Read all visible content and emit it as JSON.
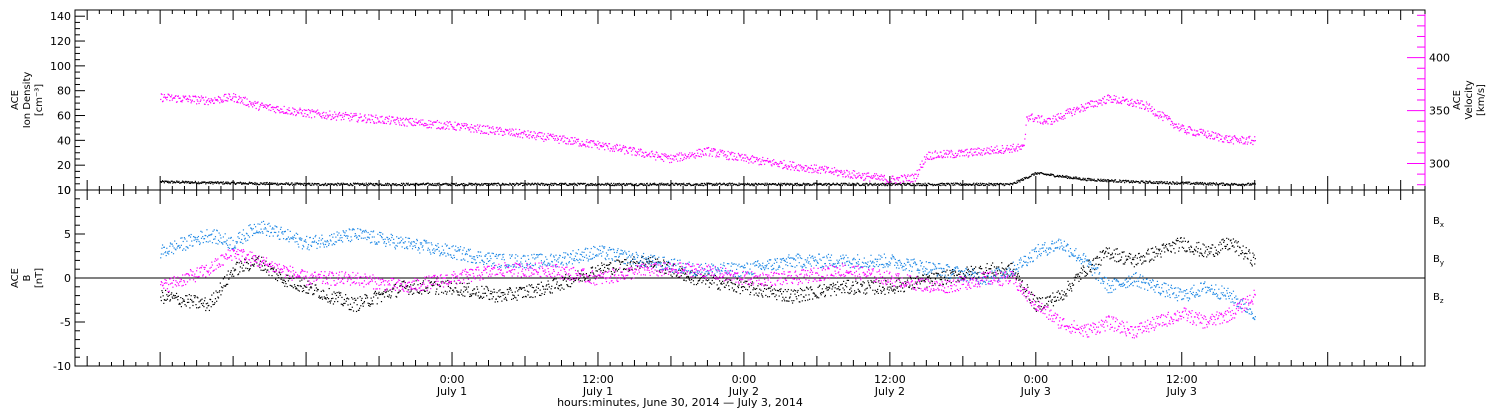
{
  "colors": {
    "black": "#000000",
    "magenta": "#ff00ff",
    "blue": "#1e88e5"
  },
  "chart_data": [
    {
      "type": "scatter",
      "panel": "top",
      "ylabel": {
        "line1": "ACE",
        "line2": "Ion Density",
        "line3": "[cm⁻³]"
      },
      "ylabel_right": {
        "line1": "ACE",
        "line2": "Velocity",
        "line3": "[km/s]"
      },
      "ylim": [
        0,
        145
      ],
      "ylim_right": [
        275,
        445
      ],
      "yticks": [
        0,
        20,
        40,
        60,
        80,
        100,
        120,
        140
      ],
      "yticks_right": [
        300,
        350,
        400
      ],
      "series": [
        {
          "color": "#000000",
          "axis": "left",
          "keypoints": [
            [
              0,
              7
            ],
            [
              6,
              6
            ],
            [
              12,
              5
            ],
            [
              18,
              5
            ],
            [
              24,
              5
            ],
            [
              36,
              5
            ],
            [
              48,
              5
            ],
            [
              60,
              5
            ],
            [
              66,
              5
            ],
            [
              70,
              5
            ],
            [
              72,
              14
            ],
            [
              76,
              9
            ],
            [
              80,
              7
            ],
            [
              84,
              6
            ],
            [
              88,
              5
            ],
            [
              90,
              5
            ]
          ]
        },
        {
          "color": "#ff00ff",
          "axis": "right",
          "keypoints": [
            [
              0,
              363
            ],
            [
              4,
              360
            ],
            [
              6,
              363
            ],
            [
              8,
              355
            ],
            [
              12,
              348
            ],
            [
              18,
              342
            ],
            [
              24,
              336
            ],
            [
              30,
              328
            ],
            [
              36,
              318
            ],
            [
              42,
              305
            ],
            [
              45,
              312
            ],
            [
              48,
              305
            ],
            [
              54,
              295
            ],
            [
              60,
              285
            ],
            [
              62,
              287
            ],
            [
              63,
              308
            ],
            [
              66,
              310
            ],
            [
              70,
              315
            ],
            [
              71,
              315
            ],
            [
              71.2,
              345
            ],
            [
              73,
              340
            ],
            [
              75,
              350
            ],
            [
              78,
              362
            ],
            [
              81,
              355
            ],
            [
              84,
              333
            ],
            [
              88,
              323
            ],
            [
              90,
              322
            ]
          ]
        }
      ]
    },
    {
      "type": "scatter",
      "panel": "bottom",
      "ylabel": {
        "line1": "ACE",
        "line2": "B",
        "line3": "[nT]"
      },
      "ylim": [
        -10,
        10
      ],
      "yticks": [
        -10,
        -5,
        0,
        5,
        10
      ],
      "series": [
        {
          "name": "Bx",
          "color": "#000000",
          "keypoints": [
            [
              0,
              -2
            ],
            [
              4,
              -3
            ],
            [
              6,
              1
            ],
            [
              8,
              2
            ],
            [
              10,
              0
            ],
            [
              12,
              -1
            ],
            [
              14,
              -2
            ],
            [
              16,
              -3
            ],
            [
              18,
              -2
            ],
            [
              20,
              -1
            ],
            [
              24,
              -1
            ],
            [
              28,
              -2
            ],
            [
              32,
              -1
            ],
            [
              36,
              1
            ],
            [
              40,
              2
            ],
            [
              44,
              0
            ],
            [
              48,
              -1
            ],
            [
              52,
              -2
            ],
            [
              56,
              -1
            ],
            [
              60,
              -1
            ],
            [
              64,
              0
            ],
            [
              68,
              1
            ],
            [
              70,
              1
            ],
            [
              72,
              -3
            ],
            [
              74,
              -2
            ],
            [
              76,
              1
            ],
            [
              78,
              3
            ],
            [
              80,
              2
            ],
            [
              84,
              4
            ],
            [
              86,
              3
            ],
            [
              88,
              4
            ],
            [
              90,
              2
            ]
          ]
        },
        {
          "name": "By",
          "color": "#1e88e5",
          "keypoints": [
            [
              0,
              3
            ],
            [
              4,
              5
            ],
            [
              6,
              4
            ],
            [
              8,
              6
            ],
            [
              10,
              5
            ],
            [
              12,
              4
            ],
            [
              16,
              5
            ],
            [
              20,
              4
            ],
            [
              24,
              3
            ],
            [
              28,
              2
            ],
            [
              32,
              2
            ],
            [
              36,
              3
            ],
            [
              40,
              2
            ],
            [
              44,
              1
            ],
            [
              48,
              1
            ],
            [
              52,
              2
            ],
            [
              56,
              2
            ],
            [
              60,
              2
            ],
            [
              64,
              1
            ],
            [
              68,
              0
            ],
            [
              70,
              1
            ],
            [
              72,
              3
            ],
            [
              74,
              4
            ],
            [
              76,
              2
            ],
            [
              78,
              -1
            ],
            [
              80,
              0
            ],
            [
              82,
              -1
            ],
            [
              84,
              -2
            ],
            [
              86,
              -1
            ],
            [
              88,
              -2
            ],
            [
              90,
              -4
            ]
          ]
        },
        {
          "name": "Bz",
          "color": "#ff00ff",
          "keypoints": [
            [
              0,
              -1
            ],
            [
              4,
              1
            ],
            [
              6,
              3
            ],
            [
              8,
              2
            ],
            [
              10,
              1
            ],
            [
              12,
              0
            ],
            [
              16,
              0
            ],
            [
              20,
              -1
            ],
            [
              24,
              0
            ],
            [
              28,
              1
            ],
            [
              32,
              1
            ],
            [
              36,
              0
            ],
            [
              40,
              1
            ],
            [
              44,
              1
            ],
            [
              48,
              0
            ],
            [
              52,
              0
            ],
            [
              56,
              1
            ],
            [
              60,
              0
            ],
            [
              64,
              -1
            ],
            [
              68,
              0
            ],
            [
              70,
              0
            ],
            [
              72,
              -3
            ],
            [
              74,
              -5
            ],
            [
              76,
              -6
            ],
            [
              78,
              -5
            ],
            [
              80,
              -6
            ],
            [
              82,
              -5
            ],
            [
              84,
              -4
            ],
            [
              86,
              -5
            ],
            [
              88,
              -4
            ],
            [
              90,
              -2
            ]
          ]
        }
      ],
      "legend": [
        "B",
        "B",
        "B"
      ],
      "legend_sub": [
        "x",
        "y",
        "z"
      ]
    }
  ],
  "xaxis": {
    "ticks": [
      {
        "time": "0:00",
        "day": "July 1",
        "t": 24
      },
      {
        "time": "12:00",
        "day": "July 1",
        "t": 36
      },
      {
        "time": "0:00",
        "day": "July 2",
        "t": 48
      },
      {
        "time": "12:00",
        "day": "July 2",
        "t": 60
      },
      {
        "time": "0:00",
        "day": "July 3",
        "t": 72
      },
      {
        "time": "12:00",
        "day": "July 3",
        "t": 84
      }
    ],
    "range_hours": [
      -7,
      104
    ],
    "label": "hours:minutes, June 30, 2014 — July  3, 2014"
  }
}
